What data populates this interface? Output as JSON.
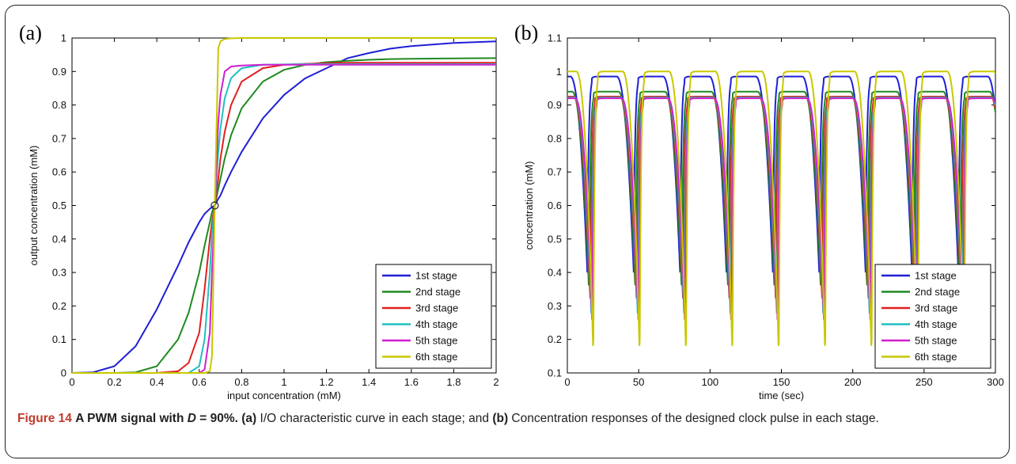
{
  "caption": {
    "figure_label": "Figure 14",
    "title_prefix": "A PWM signal with",
    "title_var": "D",
    "title_suffix": " = 90%.",
    "a_tag": "(a)",
    "a_text": " I/O characteristic curve in each stage; and ",
    "b_tag": "(b)",
    "b_text": " Concentration responses of the designed clock pulse in each stage."
  },
  "chart_data": [
    {
      "type": "line",
      "panel_label": "(a)",
      "xlabel": "input concentration (mM)",
      "ylabel": "output concentration (mM)",
      "xlim": [
        0,
        2
      ],
      "ylim": [
        0,
        1
      ],
      "xticks": [
        "0",
        "0.2",
        "0.4",
        "0.6",
        "0.8",
        "1",
        "1.2",
        "1.4",
        "1.6",
        "1.8",
        "2"
      ],
      "yticks": [
        "0",
        "0.1",
        "0.2",
        "0.3",
        "0.4",
        "0.5",
        "0.6",
        "0.7",
        "0.8",
        "0.9",
        "1"
      ],
      "legend_position": "bottom-right",
      "marker": {
        "x": 0.673,
        "y": 0.5
      },
      "x": [
        0,
        0.1,
        0.2,
        0.3,
        0.4,
        0.5,
        0.55,
        0.6,
        0.625,
        0.65,
        0.66,
        0.673,
        0.69,
        0.7,
        0.72,
        0.75,
        0.8,
        0.9,
        1.0,
        1.1,
        1.2,
        1.3,
        1.4,
        1.5,
        1.6,
        1.8,
        2.0
      ],
      "series": [
        {
          "name": "1st stage",
          "color": "#1f1fd6",
          "values": [
            0.0,
            0.002,
            0.02,
            0.08,
            0.19,
            0.32,
            0.39,
            0.45,
            0.475,
            0.49,
            0.495,
            0.5,
            0.52,
            0.53,
            0.56,
            0.6,
            0.66,
            0.76,
            0.83,
            0.88,
            0.91,
            0.94,
            0.955,
            0.968,
            0.976,
            0.985,
            0.99
          ]
        },
        {
          "name": "2nd stage",
          "color": "#1f8a1f",
          "values": [
            0.0,
            0.0,
            0.0,
            0.002,
            0.02,
            0.1,
            0.18,
            0.3,
            0.38,
            0.45,
            0.48,
            0.5,
            0.55,
            0.58,
            0.64,
            0.71,
            0.79,
            0.87,
            0.905,
            0.92,
            0.928,
            0.932,
            0.935,
            0.937,
            0.938,
            0.939,
            0.94
          ]
        },
        {
          "name": "3rd stage",
          "color": "#e02020",
          "values": [
            0.0,
            0.0,
            0.0,
            0.0,
            0.0,
            0.005,
            0.03,
            0.12,
            0.25,
            0.4,
            0.45,
            0.5,
            0.58,
            0.64,
            0.72,
            0.8,
            0.87,
            0.91,
            0.92,
            0.923,
            0.925,
            0.926,
            0.926,
            0.926,
            0.926,
            0.926,
            0.926
          ]
        },
        {
          "name": "4th stage",
          "color": "#20c0c0",
          "values": [
            0.0,
            0.0,
            0.0,
            0.0,
            0.0,
            0.0,
            0.0,
            0.02,
            0.1,
            0.3,
            0.42,
            0.5,
            0.66,
            0.73,
            0.82,
            0.88,
            0.91,
            0.92,
            0.921,
            0.922,
            0.922,
            0.922,
            0.922,
            0.922,
            0.922,
            0.922,
            0.922
          ]
        },
        {
          "name": "5th stage",
          "color": "#d01fd0",
          "values": [
            0.0,
            0.0,
            0.0,
            0.0,
            0.0,
            0.0,
            0.0,
            0.0,
            0.01,
            0.12,
            0.3,
            0.5,
            0.75,
            0.83,
            0.9,
            0.915,
            0.918,
            0.92,
            0.92,
            0.92,
            0.92,
            0.92,
            0.92,
            0.92,
            0.92,
            0.92,
            0.92
          ]
        },
        {
          "name": "6th stage",
          "color": "#c8c800",
          "values": [
            0.0,
            0.0,
            0.0,
            0.0,
            0.0,
            0.0,
            0.0,
            0.0,
            0.0,
            0.005,
            0.05,
            0.5,
            0.97,
            0.99,
            0.997,
            0.999,
            1.0,
            1.0,
            1.0,
            1.0,
            1.0,
            1.0,
            1.0,
            1.0,
            1.0,
            1.0,
            1.0
          ]
        }
      ]
    },
    {
      "type": "line",
      "panel_label": "(b)",
      "xlabel": "time (sec)",
      "ylabel": "concentration (mM)",
      "xlim": [
        0,
        300
      ],
      "ylim": [
        0.1,
        1.1
      ],
      "xticks": [
        "0",
        "50",
        "100",
        "150",
        "200",
        "250",
        "300"
      ],
      "yticks": [
        "0.1",
        "0.2",
        "0.3",
        "0.4",
        "0.5",
        "0.6",
        "0.7",
        "0.8",
        "0.9",
        "1",
        "1.1"
      ],
      "legend_position": "bottom-right",
      "period": 32.5,
      "cycles": 9,
      "series": [
        {
          "name": "1st stage",
          "color": "#1f1fd6",
          "peak": 0.985,
          "dip_min": 0.4,
          "dip_time": 14,
          "phase": 0
        },
        {
          "name": "2nd stage",
          "color": "#1f8a1f",
          "peak": 0.94,
          "dip_min": 0.34,
          "dip_time": 15.2,
          "phase": 0
        },
        {
          "name": "3rd stage",
          "color": "#e02020",
          "peak": 0.925,
          "dip_min": 0.3,
          "dip_time": 16.2,
          "phase": 0
        },
        {
          "name": "4th stage",
          "color": "#20c0c0",
          "peak": 0.922,
          "dip_min": 0.26,
          "dip_time": 16.9,
          "phase": 0
        },
        {
          "name": "5th stage",
          "color": "#d01fd0",
          "peak": 0.92,
          "dip_min": 0.24,
          "dip_time": 17.4,
          "phase": 0
        },
        {
          "name": "6th stage",
          "color": "#c8c800",
          "peak": 1.0,
          "dip_min": 0.15,
          "dip_time": 18.2,
          "phase": 0
        }
      ]
    }
  ]
}
